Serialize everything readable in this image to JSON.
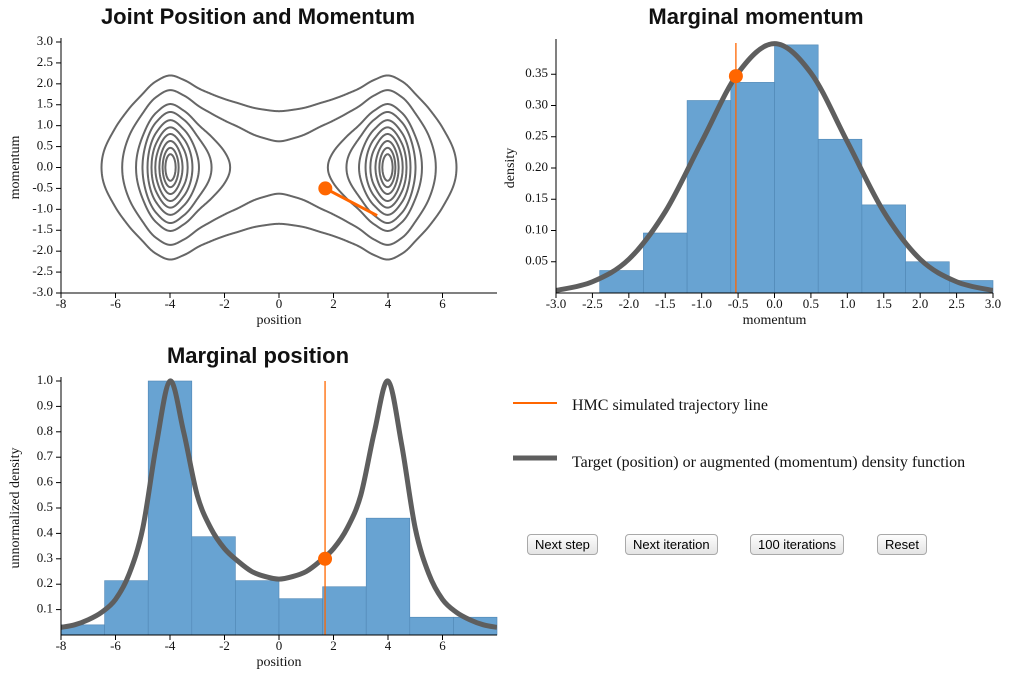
{
  "chart_data": [
    {
      "type": "contour",
      "title": "Joint Position and Momentum",
      "x_label": "position",
      "y_label": "momentum",
      "xlim": [
        -8,
        8
      ],
      "xticks": [
        -8,
        -6,
        -4,
        -2,
        0,
        2,
        4,
        6
      ],
      "ylim": [
        -3,
        3
      ],
      "yticks": [
        {
          "value": -3,
          "label": "-3.0"
        },
        -2.5,
        {
          "value": -2,
          "label": "-2.0"
        },
        -1.5,
        {
          "value": -1,
          "label": "-1.0"
        },
        -0.5,
        {
          "value": 0,
          "label": "0.0"
        },
        0.5,
        {
          "value": 1,
          "label": "1.0"
        },
        1.5,
        {
          "value": 2,
          "label": "2.0"
        },
        2.5,
        {
          "value": 3,
          "label": "3.0"
        }
      ],
      "levels": [
        2.42,
        1.71,
        1.15,
        0.88,
        0.64,
        0.46,
        0.32,
        0.2,
        0.11,
        0.05
      ],
      "contour_color": "#666666",
      "trajectory": {
        "color": "#ff6600",
        "x": [
          1.7,
          3.6
        ],
        "y": [
          -0.5,
          -1.15
        ]
      }
    },
    {
      "type": "histogram",
      "title": "Marginal momentum",
      "x_label": "momentum",
      "y_label": "density",
      "bins": [
        -2.4,
        -1.8,
        -1.2,
        -0.6,
        0,
        0.6,
        1.2,
        1.8,
        2.4,
        3.0
      ],
      "values": [
        0.036,
        0.096,
        0.308,
        0.337,
        0.397,
        0.246,
        0.141,
        0.05,
        0.02
      ],
      "color": "#68a3d2",
      "xlim": [
        -3,
        3
      ],
      "xticks": [
        {
          "value": -3,
          "label": "-3.0"
        },
        -2.5,
        {
          "value": -2,
          "label": "-2.0"
        },
        -1.5,
        {
          "value": -1,
          "label": "-1.0"
        },
        -0.5,
        {
          "value": 0,
          "label": "0.0"
        },
        0.5,
        {
          "value": 1,
          "label": "1.0"
        },
        1.5,
        {
          "value": 2,
          "label": "2.0"
        },
        2.5,
        {
          "value": 3,
          "label": "3.0"
        }
      ],
      "ylim": [
        0,
        0.4
      ],
      "yticks": [
        0.05,
        {
          "value": 0.1,
          "label": "0.10"
        },
        0.15,
        {
          "value": 0.2,
          "label": "0.20"
        },
        0.25,
        {
          "value": 0.3,
          "label": "0.30"
        },
        0.35
      ],
      "curve": {
        "color": "#5e5e5e",
        "x": [
          -3,
          -2.5,
          -2,
          -1.5,
          -1,
          -0.5,
          0,
          0.5,
          1,
          1.5,
          2,
          2.5,
          3
        ],
        "values": [
          0.004,
          0.018,
          0.054,
          0.13,
          0.242,
          0.352,
          0.399,
          0.352,
          0.242,
          0.13,
          0.054,
          0.018,
          0.004
        ]
      },
      "current": {
        "color": "#ff6600",
        "x": -0.53,
        "y": 0.347
      }
    },
    {
      "type": "histogram",
      "title": "Marginal position",
      "x_label": "position",
      "y_label": "unnormalized density",
      "bins": [
        -8,
        -6.4,
        -4.8,
        -3.2,
        -1.6,
        0,
        1.6,
        3.2,
        4.8,
        6.4,
        8
      ],
      "values": [
        0.04,
        0.214,
        1.0,
        0.387,
        0.214,
        0.143,
        0.19,
        0.46,
        0.07,
        0.07
      ],
      "color": "#68a3d2",
      "xlim": [
        -8,
        8
      ],
      "xticks": [
        -8,
        -6,
        -4,
        -2,
        0,
        2,
        4,
        6
      ],
      "ylim": [
        0,
        1
      ],
      "yticks": [
        0.1,
        0.2,
        0.3,
        0.4,
        0.5,
        0.6,
        0.7,
        0.8,
        0.9,
        {
          "value": 1,
          "label": "1.0"
        }
      ],
      "curve": {
        "color": "#5e5e5e",
        "x": [
          -8,
          -7.5,
          -7,
          -6.5,
          -6,
          -5.5,
          -5,
          -4.5,
          -4,
          -3.5,
          -3,
          -2.5,
          -2,
          -1.5,
          -1,
          -0.5,
          0,
          0.5,
          1,
          1.5,
          2,
          2.5,
          3,
          3.5,
          4,
          4.5,
          5,
          5.5,
          6,
          6.5,
          7,
          7.5,
          8
        ],
        "values": [
          0.03,
          0.04,
          0.06,
          0.09,
          0.14,
          0.24,
          0.42,
          0.75,
          1.0,
          0.8,
          0.55,
          0.42,
          0.34,
          0.29,
          0.25,
          0.23,
          0.22,
          0.23,
          0.25,
          0.29,
          0.34,
          0.42,
          0.55,
          0.8,
          1.0,
          0.75,
          0.42,
          0.24,
          0.14,
          0.09,
          0.06,
          0.04,
          0.03
        ]
      },
      "current": {
        "color": "#ff6600",
        "x": 1.69,
        "y": 0.3
      }
    }
  ],
  "legend": [
    {
      "label": "HMC simulated trajectory line",
      "color": "#ff6600"
    },
    {
      "label": "Target (position) or augmented (momentum) density function",
      "color": "#5e5e5e"
    }
  ],
  "buttons": [
    "Next step",
    "Next iteration",
    "100 iterations",
    "Reset"
  ]
}
